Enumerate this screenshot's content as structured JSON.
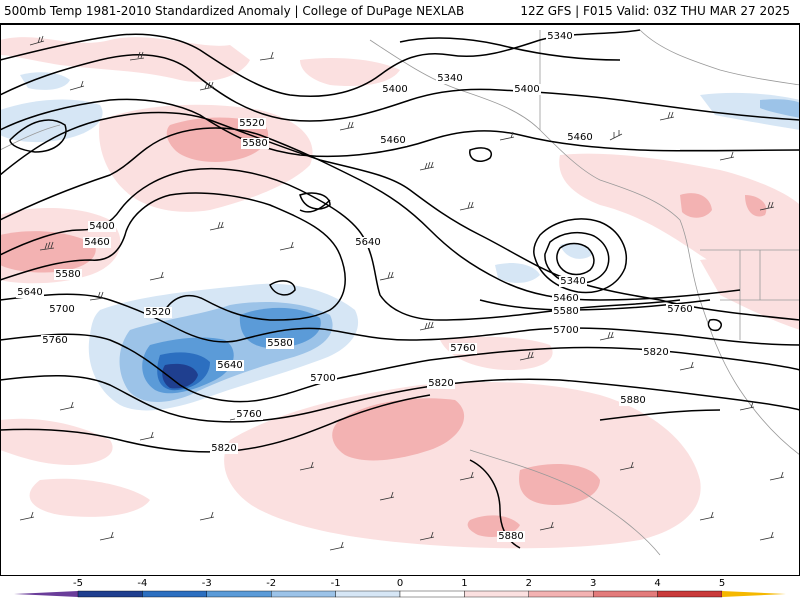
{
  "header": {
    "title_left": "500mb Temp 1981-2010 Standardized Anomaly | College of DuPage NEXLAB",
    "title_right": "12Z GFS | F015 Valid: 03Z THU MAR 27 2025"
  },
  "colorbar": {
    "ticks": [
      "-5",
      "-4",
      "-3",
      "-2",
      "-1",
      "0",
      "1",
      "2",
      "3",
      "4",
      "5"
    ],
    "colors": [
      "#6a3d9a",
      "#1f3f8f",
      "#2c6fc0",
      "#5b9bd8",
      "#9cc3e8",
      "#d6e6f5",
      "#ffffff",
      "#fbe0e0",
      "#f3b2b2",
      "#e37b7b",
      "#c93a3a",
      "#8b1a1a",
      "#f5b800"
    ]
  },
  "height_contours": {
    "labels": [
      "5340",
      "5340",
      "5400",
      "5400",
      "5460",
      "5460",
      "5520",
      "5580",
      "5400",
      "5460",
      "5580",
      "5640",
      "5640",
      "5520",
      "5700",
      "5760",
      "5640",
      "5580",
      "5700",
      "5760",
      "5820",
      "5820",
      "5340",
      "5460",
      "5580",
      "5700",
      "5760",
      "5820",
      "5880",
      "5880"
    ]
  }
}
